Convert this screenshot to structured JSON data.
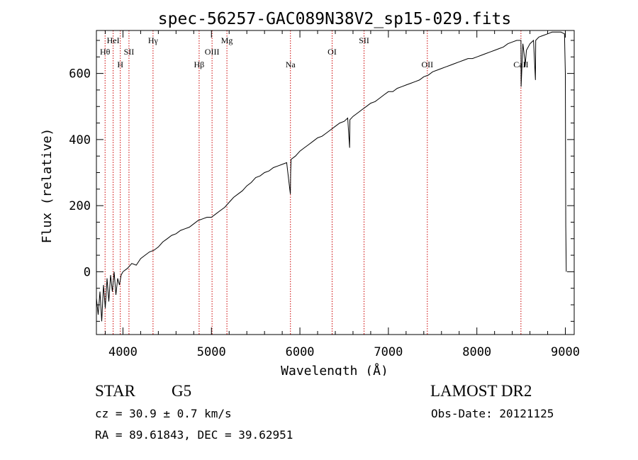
{
  "chart_data": {
    "type": "line",
    "title": "spec-56257-GAC089N38V2_sp15-029.fits",
    "xlabel": "Wavelength (Å)",
    "ylabel": "Flux (relative)",
    "xlim": [
      3700,
      9100
    ],
    "ylim": [
      -190,
      730
    ],
    "xticks": [
      4000,
      5000,
      6000,
      7000,
      8000,
      9000
    ],
    "yticks": [
      0,
      200,
      400,
      600
    ],
    "grid": false,
    "series": [
      {
        "x": [
          3700,
          3720,
          3740,
          3760,
          3780,
          3800,
          3820,
          3840,
          3860,
          3880,
          3900,
          3920,
          3940,
          3960,
          3980,
          4000,
          4050,
          4100,
          4150,
          4200,
          4250,
          4300,
          4350,
          4400,
          4450,
          4500,
          4550,
          4600,
          4650,
          4700,
          4750,
          4800,
          4850,
          4900,
          4950,
          5000,
          5050,
          5100,
          5150,
          5200,
          5250,
          5300,
          5350,
          5400,
          5450,
          5500,
          5550,
          5600,
          5650,
          5700,
          5750,
          5800,
          5850,
          5892,
          5895,
          5900,
          5950,
          6000,
          6050,
          6100,
          6150,
          6200,
          6250,
          6300,
          6350,
          6400,
          6450,
          6500,
          6540,
          6562,
          6565,
          6600,
          6650,
          6700,
          6750,
          6800,
          6850,
          6900,
          6950,
          7000,
          7050,
          7100,
          7150,
          7200,
          7250,
          7300,
          7350,
          7400,
          7450,
          7500,
          7550,
          7600,
          7650,
          7700,
          7750,
          7800,
          7850,
          7900,
          7950,
          8000,
          8050,
          8100,
          8150,
          8200,
          8250,
          8300,
          8350,
          8400,
          8450,
          8498,
          8500,
          8520,
          8542,
          8545,
          8560,
          8600,
          8640,
          8662,
          8665,
          8700,
          8750,
          8800,
          8850,
          8900,
          8950,
          8990,
          9000,
          9005,
          9010
        ],
        "y": [
          -80,
          -130,
          -60,
          -150,
          -40,
          -110,
          -20,
          -90,
          -10,
          -60,
          0,
          -70,
          -20,
          -40,
          -10,
          0,
          10,
          25,
          20,
          40,
          50,
          60,
          65,
          75,
          90,
          100,
          110,
          115,
          125,
          130,
          135,
          145,
          155,
          160,
          165,
          165,
          175,
          185,
          195,
          210,
          225,
          235,
          245,
          260,
          270,
          285,
          290,
          300,
          305,
          315,
          320,
          325,
          330,
          235,
          300,
          340,
          350,
          365,
          375,
          385,
          395,
          405,
          410,
          420,
          430,
          440,
          450,
          455,
          465,
          375,
          460,
          470,
          480,
          490,
          500,
          510,
          515,
          525,
          535,
          545,
          545,
          555,
          560,
          565,
          570,
          575,
          580,
          590,
          595,
          605,
          610,
          615,
          620,
          625,
          630,
          635,
          640,
          645,
          645,
          650,
          655,
          660,
          665,
          670,
          675,
          680,
          690,
          695,
          700,
          700,
          560,
          690,
          640,
          620,
          670,
          690,
          700,
          580,
          700,
          710,
          715,
          720,
          725,
          725,
          725,
          720,
          600,
          140,
          0
        ]
      }
    ],
    "lines": [
      {
        "label": "Hθ",
        "x": 3798,
        "row": 2
      },
      {
        "label": "HeI",
        "x": 3889,
        "row": 1
      },
      {
        "label": "H",
        "x": 3970,
        "row": 3
      },
      {
        "label": "SII",
        "x": 4068,
        "row": 2
      },
      {
        "label": "Hγ",
        "x": 4340,
        "row": 1
      },
      {
        "label": "Hβ",
        "x": 4861,
        "row": 3
      },
      {
        "label": "OIII",
        "x": 5007,
        "row": 2
      },
      {
        "label": "Mg",
        "x": 5175,
        "row": 1
      },
      {
        "label": "Na",
        "x": 5893,
        "row": 3
      },
      {
        "label": "OI",
        "x": 6364,
        "row": 2
      },
      {
        "label": "SII",
        "x": 6725,
        "row": 1
      },
      {
        "label": "OII",
        "x": 7440,
        "row": 3
      },
      {
        "label": "CaII",
        "x": 8498,
        "row": 3
      }
    ],
    "line_color": "#000000",
    "marker_color": "#cc0000"
  },
  "info": {
    "class": "STAR",
    "subclass": "G5",
    "survey": "LAMOST DR2",
    "cz": "cz = 30.9 ± 0.7 km/s",
    "obs_date": "Obs-Date: 20121125",
    "radec": "RA =  89.61843, DEC =  39.62951"
  }
}
